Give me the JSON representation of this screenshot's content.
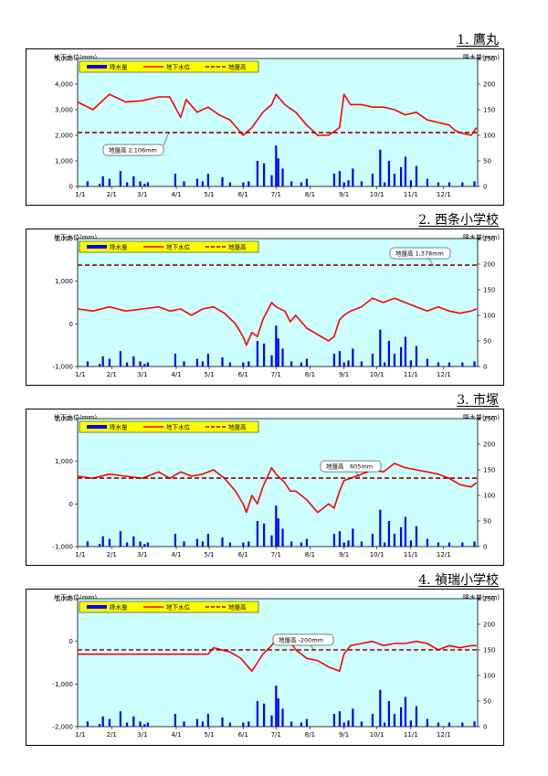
{
  "legend": {
    "rain_label": "降水量",
    "gw_label": "地下水位",
    "ground_label": "地盤高"
  },
  "axis": {
    "left_title": "地下水位(mm)",
    "right_title": "降水量(mm)",
    "x_ticks": [
      "1/1",
      "2/1",
      "3/1",
      "4/1",
      "5/1",
      "6/1",
      "7/1",
      "8/1",
      "9/1",
      "10/1",
      "11/1",
      "12/1"
    ],
    "rain_ticks": [
      "0",
      "50",
      "100",
      "150",
      "200",
      "250"
    ]
  },
  "colors": {
    "rain": "#0000ff",
    "groundwater": "#ff0000",
    "ground_level": "#990000",
    "plot_bg": "#ccffff",
    "legend_bg": "#ffff00"
  },
  "chart_data": [
    {
      "title": "1. 鷹丸",
      "type": "line+bar",
      "ylim": [
        0,
        5000
      ],
      "y_ticks": [
        "0",
        "1,000",
        "2,000",
        "3,000",
        "4,000",
        "5,000"
      ],
      "rain_ylim": [
        0,
        250
      ],
      "ground_level": 2106,
      "ground_label": "地盤高 2,106mm",
      "series": [
        {
          "name": "地下水位",
          "x": [
            1,
            15,
            30,
            45,
            60,
            75,
            85,
            95,
            100,
            110,
            120,
            130,
            140,
            152,
            160,
            170,
            178,
            182,
            190,
            200,
            210,
            220,
            230,
            240,
            244,
            250,
            260,
            270,
            280,
            290,
            300,
            310,
            320,
            330,
            340,
            345,
            350,
            355,
            360,
            365
          ],
          "values": [
            3300,
            3000,
            3600,
            3300,
            3350,
            3500,
            3500,
            2700,
            3400,
            2900,
            3100,
            2800,
            2600,
            2000,
            2300,
            2900,
            3200,
            3600,
            3200,
            2900,
            2400,
            2000,
            2000,
            2300,
            3600,
            3200,
            3200,
            3100,
            3100,
            3000,
            2800,
            2900,
            2600,
            2500,
            2400,
            2200,
            2100,
            2050,
            2000,
            2300
          ]
        },
        {
          "name": "降水量",
          "x": [
            10,
            21,
            24,
            30,
            40,
            46,
            52,
            58,
            62,
            65,
            90,
            98,
            110,
            115,
            120,
            133,
            140,
            152,
            157,
            165,
            171,
            178,
            182,
            184,
            188,
            196,
            205,
            210,
            235,
            240,
            244,
            248,
            252,
            260,
            270,
            277,
            281,
            285,
            290,
            296,
            300,
            305,
            310,
            320,
            330,
            340,
            352,
            363
          ],
          "values": [
            10,
            5,
            20,
            15,
            30,
            8,
            20,
            10,
            5,
            8,
            25,
            10,
            15,
            10,
            25,
            18,
            8,
            8,
            10,
            50,
            45,
            22,
            80,
            55,
            35,
            10,
            8,
            15,
            25,
            30,
            8,
            12,
            35,
            10,
            25,
            72,
            8,
            50,
            25,
            38,
            58,
            12,
            40,
            15,
            8,
            8,
            8,
            10
          ]
        }
      ]
    },
    {
      "title": "2. 西条小学校",
      "type": "line+bar",
      "ylim": [
        -1000,
        2000
      ],
      "y_ticks": [
        "-1,000",
        "0",
        "1,000",
        "2,000"
      ],
      "rain_ylim": [
        0,
        250
      ],
      "ground_level": 1378,
      "ground_label": "地盤高 1,378mm",
      "series": [
        {
          "name": "地下水位",
          "x": [
            1,
            15,
            30,
            45,
            60,
            75,
            85,
            95,
            105,
            115,
            125,
            135,
            145,
            152,
            155,
            160,
            165,
            170,
            178,
            182,
            190,
            195,
            200,
            210,
            220,
            230,
            235,
            240,
            244,
            250,
            260,
            270,
            280,
            290,
            300,
            310,
            320,
            330,
            340,
            350,
            360,
            365
          ],
          "values": [
            350,
            300,
            400,
            300,
            350,
            400,
            300,
            350,
            200,
            350,
            400,
            250,
            0,
            -300,
            -500,
            -200,
            -300,
            100,
            500,
            400,
            300,
            50,
            200,
            -100,
            -250,
            -400,
            -300,
            100,
            200,
            300,
            400,
            600,
            500,
            600,
            500,
            400,
            300,
            400,
            300,
            250,
            300,
            350
          ]
        },
        {
          "name": "降水量",
          "x": [
            10,
            21,
            24,
            30,
            40,
            46,
            52,
            58,
            62,
            65,
            90,
            98,
            110,
            115,
            120,
            133,
            140,
            152,
            157,
            165,
            171,
            178,
            182,
            184,
            188,
            196,
            205,
            210,
            235,
            240,
            244,
            248,
            252,
            260,
            270,
            277,
            281,
            285,
            290,
            296,
            300,
            305,
            310,
            320,
            330,
            340,
            352,
            363
          ],
          "values": [
            10,
            5,
            20,
            15,
            30,
            8,
            20,
            10,
            5,
            8,
            25,
            10,
            15,
            10,
            25,
            18,
            8,
            8,
            10,
            50,
            45,
            22,
            80,
            55,
            35,
            10,
            8,
            15,
            25,
            30,
            8,
            12,
            35,
            10,
            25,
            72,
            8,
            50,
            25,
            38,
            58,
            12,
            40,
            15,
            8,
            8,
            8,
            10
          ]
        }
      ]
    },
    {
      "title": "3. 市塚",
      "type": "line+bar",
      "ylim": [
        -1000,
        2000
      ],
      "y_ticks": [
        "-1,000",
        "0",
        "1,000",
        "2,000"
      ],
      "rain_ylim": [
        0,
        250
      ],
      "ground_level": 605,
      "ground_label": "地盤高　605mm",
      "series": [
        {
          "name": "地下水位",
          "x": [
            1,
            15,
            30,
            45,
            60,
            75,
            85,
            95,
            105,
            115,
            125,
            135,
            145,
            152,
            155,
            160,
            165,
            170,
            178,
            182,
            190,
            195,
            200,
            210,
            220,
            230,
            235,
            240,
            244,
            250,
            260,
            270,
            280,
            290,
            300,
            310,
            320,
            330,
            340,
            350,
            360,
            365
          ],
          "values": [
            650,
            600,
            700,
            650,
            600,
            750,
            600,
            750,
            650,
            700,
            800,
            600,
            300,
            0,
            -200,
            200,
            0,
            400,
            850,
            700,
            500,
            300,
            300,
            100,
            -200,
            0,
            -100,
            300,
            550,
            600,
            700,
            800,
            750,
            950,
            850,
            800,
            750,
            700,
            600,
            450,
            400,
            500
          ]
        },
        {
          "name": "降水量",
          "x": [
            10,
            21,
            24,
            30,
            40,
            46,
            52,
            58,
            62,
            65,
            90,
            98,
            110,
            115,
            120,
            133,
            140,
            152,
            157,
            165,
            171,
            178,
            182,
            184,
            188,
            196,
            205,
            210,
            235,
            240,
            244,
            248,
            252,
            260,
            270,
            277,
            281,
            285,
            290,
            296,
            300,
            305,
            310,
            320,
            330,
            340,
            352,
            363
          ],
          "values": [
            10,
            5,
            20,
            15,
            30,
            8,
            20,
            10,
            5,
            8,
            25,
            10,
            15,
            10,
            25,
            18,
            8,
            8,
            10,
            50,
            45,
            22,
            80,
            55,
            35,
            10,
            8,
            15,
            25,
            30,
            8,
            12,
            35,
            10,
            25,
            72,
            8,
            50,
            25,
            38,
            58,
            12,
            40,
            15,
            8,
            8,
            8,
            10
          ]
        }
      ]
    },
    {
      "title": "4. 禎瑞小学校",
      "type": "line+bar",
      "ylim": [
        -2000,
        1000
      ],
      "y_ticks": [
        "-2,000",
        "-1,000",
        "0",
        "1,000"
      ],
      "rain_ylim": [
        0,
        250
      ],
      "ground_level": -200,
      "ground_label": "地盤高 -200mm",
      "series": [
        {
          "name": "地下水位",
          "x": [
            1,
            20,
            40,
            60,
            80,
            100,
            120,
            125,
            140,
            150,
            160,
            165,
            170,
            178,
            182,
            188,
            195,
            200,
            210,
            220,
            230,
            240,
            244,
            250,
            260,
            270,
            280,
            290,
            300,
            310,
            320,
            330,
            340,
            350,
            360,
            365
          ],
          "values": [
            -300,
            -300,
            -300,
            -300,
            -300,
            -300,
            -300,
            -150,
            -250,
            -400,
            -700,
            -500,
            -300,
            -100,
            50,
            -50,
            0,
            -200,
            -400,
            -450,
            -600,
            -700,
            -300,
            -100,
            -50,
            0,
            -100,
            -50,
            -50,
            0,
            -50,
            -200,
            -100,
            -150,
            -100,
            -100
          ]
        },
        {
          "name": "降水量",
          "x": [
            10,
            21,
            24,
            30,
            40,
            46,
            52,
            58,
            62,
            65,
            90,
            98,
            110,
            115,
            120,
            133,
            140,
            152,
            157,
            165,
            171,
            178,
            182,
            184,
            188,
            196,
            205,
            210,
            235,
            240,
            244,
            248,
            252,
            260,
            270,
            277,
            281,
            285,
            290,
            296,
            300,
            305,
            310,
            320,
            330,
            340,
            352,
            363
          ],
          "values": [
            10,
            5,
            20,
            15,
            30,
            8,
            20,
            10,
            5,
            8,
            25,
            10,
            15,
            10,
            25,
            18,
            8,
            8,
            10,
            50,
            45,
            22,
            80,
            55,
            35,
            10,
            8,
            15,
            25,
            30,
            8,
            12,
            35,
            10,
            25,
            72,
            8,
            50,
            25,
            38,
            58,
            12,
            40,
            15,
            8,
            8,
            8,
            10
          ]
        }
      ]
    }
  ]
}
